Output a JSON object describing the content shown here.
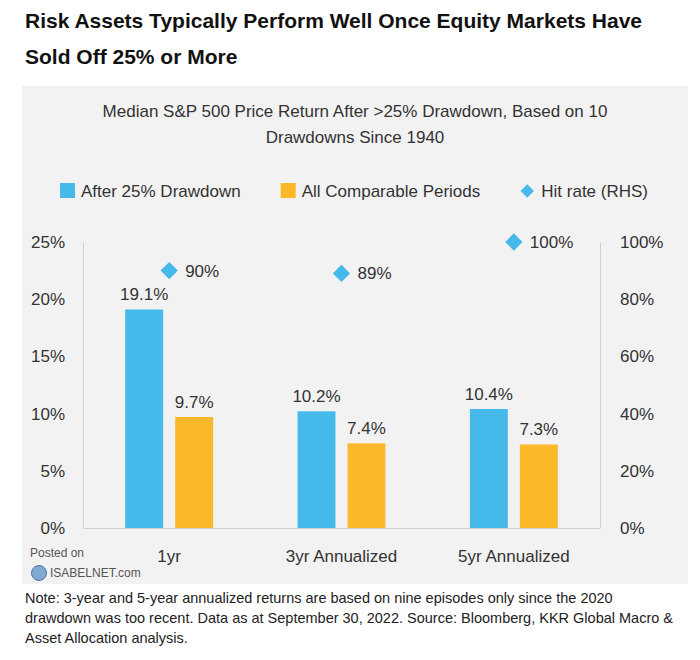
{
  "chart_data": {
    "type": "bar",
    "title": "Risk Assets Typically Perform Well Once Equity Markets Have Sold Off 25% or More",
    "subtitle": "Median S&P 500 Price Return After >25% Drawdown, Based on 10 Drawdowns Since 1940",
    "categories": [
      "1yr",
      "3yr Annualized",
      "5yr Annualized"
    ],
    "series": [
      {
        "name": "After 25% Drawdown",
        "type": "bar",
        "color": "#45b9e9",
        "values": [
          19.1,
          10.2,
          10.4
        ],
        "value_labels": [
          "19.1%",
          "10.2%",
          "10.4%"
        ]
      },
      {
        "name": "All Comparable Periods",
        "type": "bar",
        "color": "#fbb829",
        "values": [
          9.7,
          7.4,
          7.3
        ],
        "value_labels": [
          "9.7%",
          "7.4%",
          "7.3%"
        ]
      },
      {
        "name": "Hit rate (RHS)",
        "type": "scatter",
        "marker": "diamond",
        "axis": "y2",
        "color": "#45b9e9",
        "values": [
          90,
          89,
          100
        ],
        "value_labels": [
          "90%",
          "89%",
          "100%"
        ]
      }
    ],
    "ylim": [
      0,
      25
    ],
    "yticks": [
      {
        "value": 0,
        "label": "0%"
      },
      {
        "value": 5,
        "label": "5%"
      },
      {
        "value": 10,
        "label": "10%"
      },
      {
        "value": 15,
        "label": "15%"
      },
      {
        "value": 20,
        "label": "20%"
      },
      {
        "value": 25,
        "label": "25%"
      }
    ],
    "y2lim": [
      0,
      100
    ],
    "y2ticks": [
      {
        "value": 0,
        "label": "0%"
      },
      {
        "value": 20,
        "label": "20%"
      },
      {
        "value": 40,
        "label": "40%"
      },
      {
        "value": 60,
        "label": "60%"
      },
      {
        "value": 80,
        "label": "80%"
      },
      {
        "value": 100,
        "label": "100%"
      }
    ],
    "grid": false,
    "legend": "top",
    "data_labels": true,
    "note": "Note: 3-year and 5-year annualized returns are based on nine episodes only since the 2020 drawdown was too recent. Data as at September 30, 2022. Source: Bloomberg, KKR Global Macro & Asset Allocation analysis.",
    "watermark": [
      "Posted on",
      "ISABELNET.com"
    ]
  }
}
